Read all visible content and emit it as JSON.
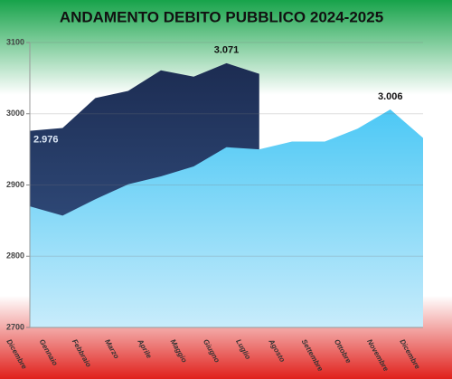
{
  "chart_data": {
    "type": "area",
    "title": "ANDAMENTO DEBITO PUBBLICO 2024-2025",
    "categories": [
      "Dicembre",
      "Gennaio",
      "Febbraio",
      "Marzo",
      "Aprile",
      "Maggio",
      "Giugno",
      "Luglio",
      "Agosto",
      "Settembre",
      "Ottobre",
      "Novembre",
      "Dicembre"
    ],
    "series": [
      {
        "color": "#1c2c52",
        "values": [
          2976,
          2980,
          3022,
          3032,
          3061,
          3052,
          3071,
          3056,
          null,
          null,
          null,
          null,
          null
        ],
        "value_labels": [
          "2.976",
          null,
          null,
          null,
          null,
          null,
          "3.071",
          null,
          null,
          null,
          null,
          null,
          null
        ]
      },
      {
        "color": "#4cc8f5",
        "values": [
          2870,
          2857,
          2880,
          2901,
          2912,
          2926,
          2953,
          2950,
          2961,
          2961,
          2979,
          3006,
          2966
        ],
        "value_labels": [
          null,
          null,
          null,
          null,
          null,
          null,
          null,
          null,
          null,
          null,
          null,
          "3.006",
          null
        ]
      }
    ],
    "ylim": [
      2700,
      3100
    ],
    "yticks": [
      2700,
      2800,
      2900,
      3000,
      3100
    ],
    "grid": true
  }
}
